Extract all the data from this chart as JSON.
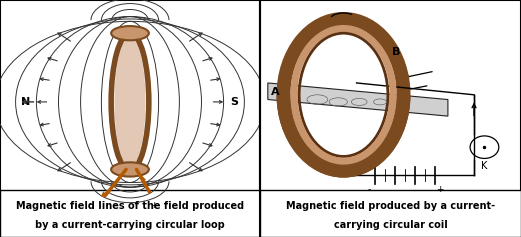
{
  "fig_width": 5.21,
  "fig_height": 2.37,
  "dpi": 100,
  "bg_color": "#ffffff",
  "border_color": "#000000",
  "panel1_caption_line1": "Magnetic field lines of the field produced",
  "panel1_caption_line2": "by a current-carrying circular loop",
  "panel2_caption_line1": "Magnetic field produced by a current-",
  "panel2_caption_line2": "carrying circular coil",
  "caption_fontsize": 7.0,
  "caption_fontweight": "bold",
  "coil_color": "#7B4A1E",
  "coil_color_light": "#C8956C",
  "arrow_color": "#111111",
  "label_N": "N",
  "label_S": "S",
  "label_A": "A",
  "label_B": "B",
  "label_K": "K",
  "plus_label": "+",
  "minus_label": "-",
  "wire_orange": "#B35A00",
  "field_line_color": "#333333",
  "plane_color": "#c8c8c8"
}
